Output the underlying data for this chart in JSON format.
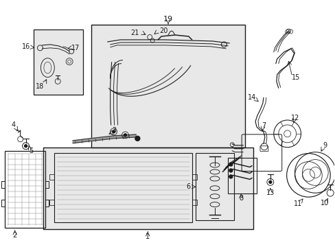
{
  "bg_color": "#ffffff",
  "fig_width": 4.89,
  "fig_height": 3.6,
  "dpi": 100,
  "line_color": "#1a1a1a",
  "label_fontsize": 7,
  "line_width": 0.7,
  "gray_fill": "#e8e8e8",
  "gray_light": "#f0f0f0"
}
